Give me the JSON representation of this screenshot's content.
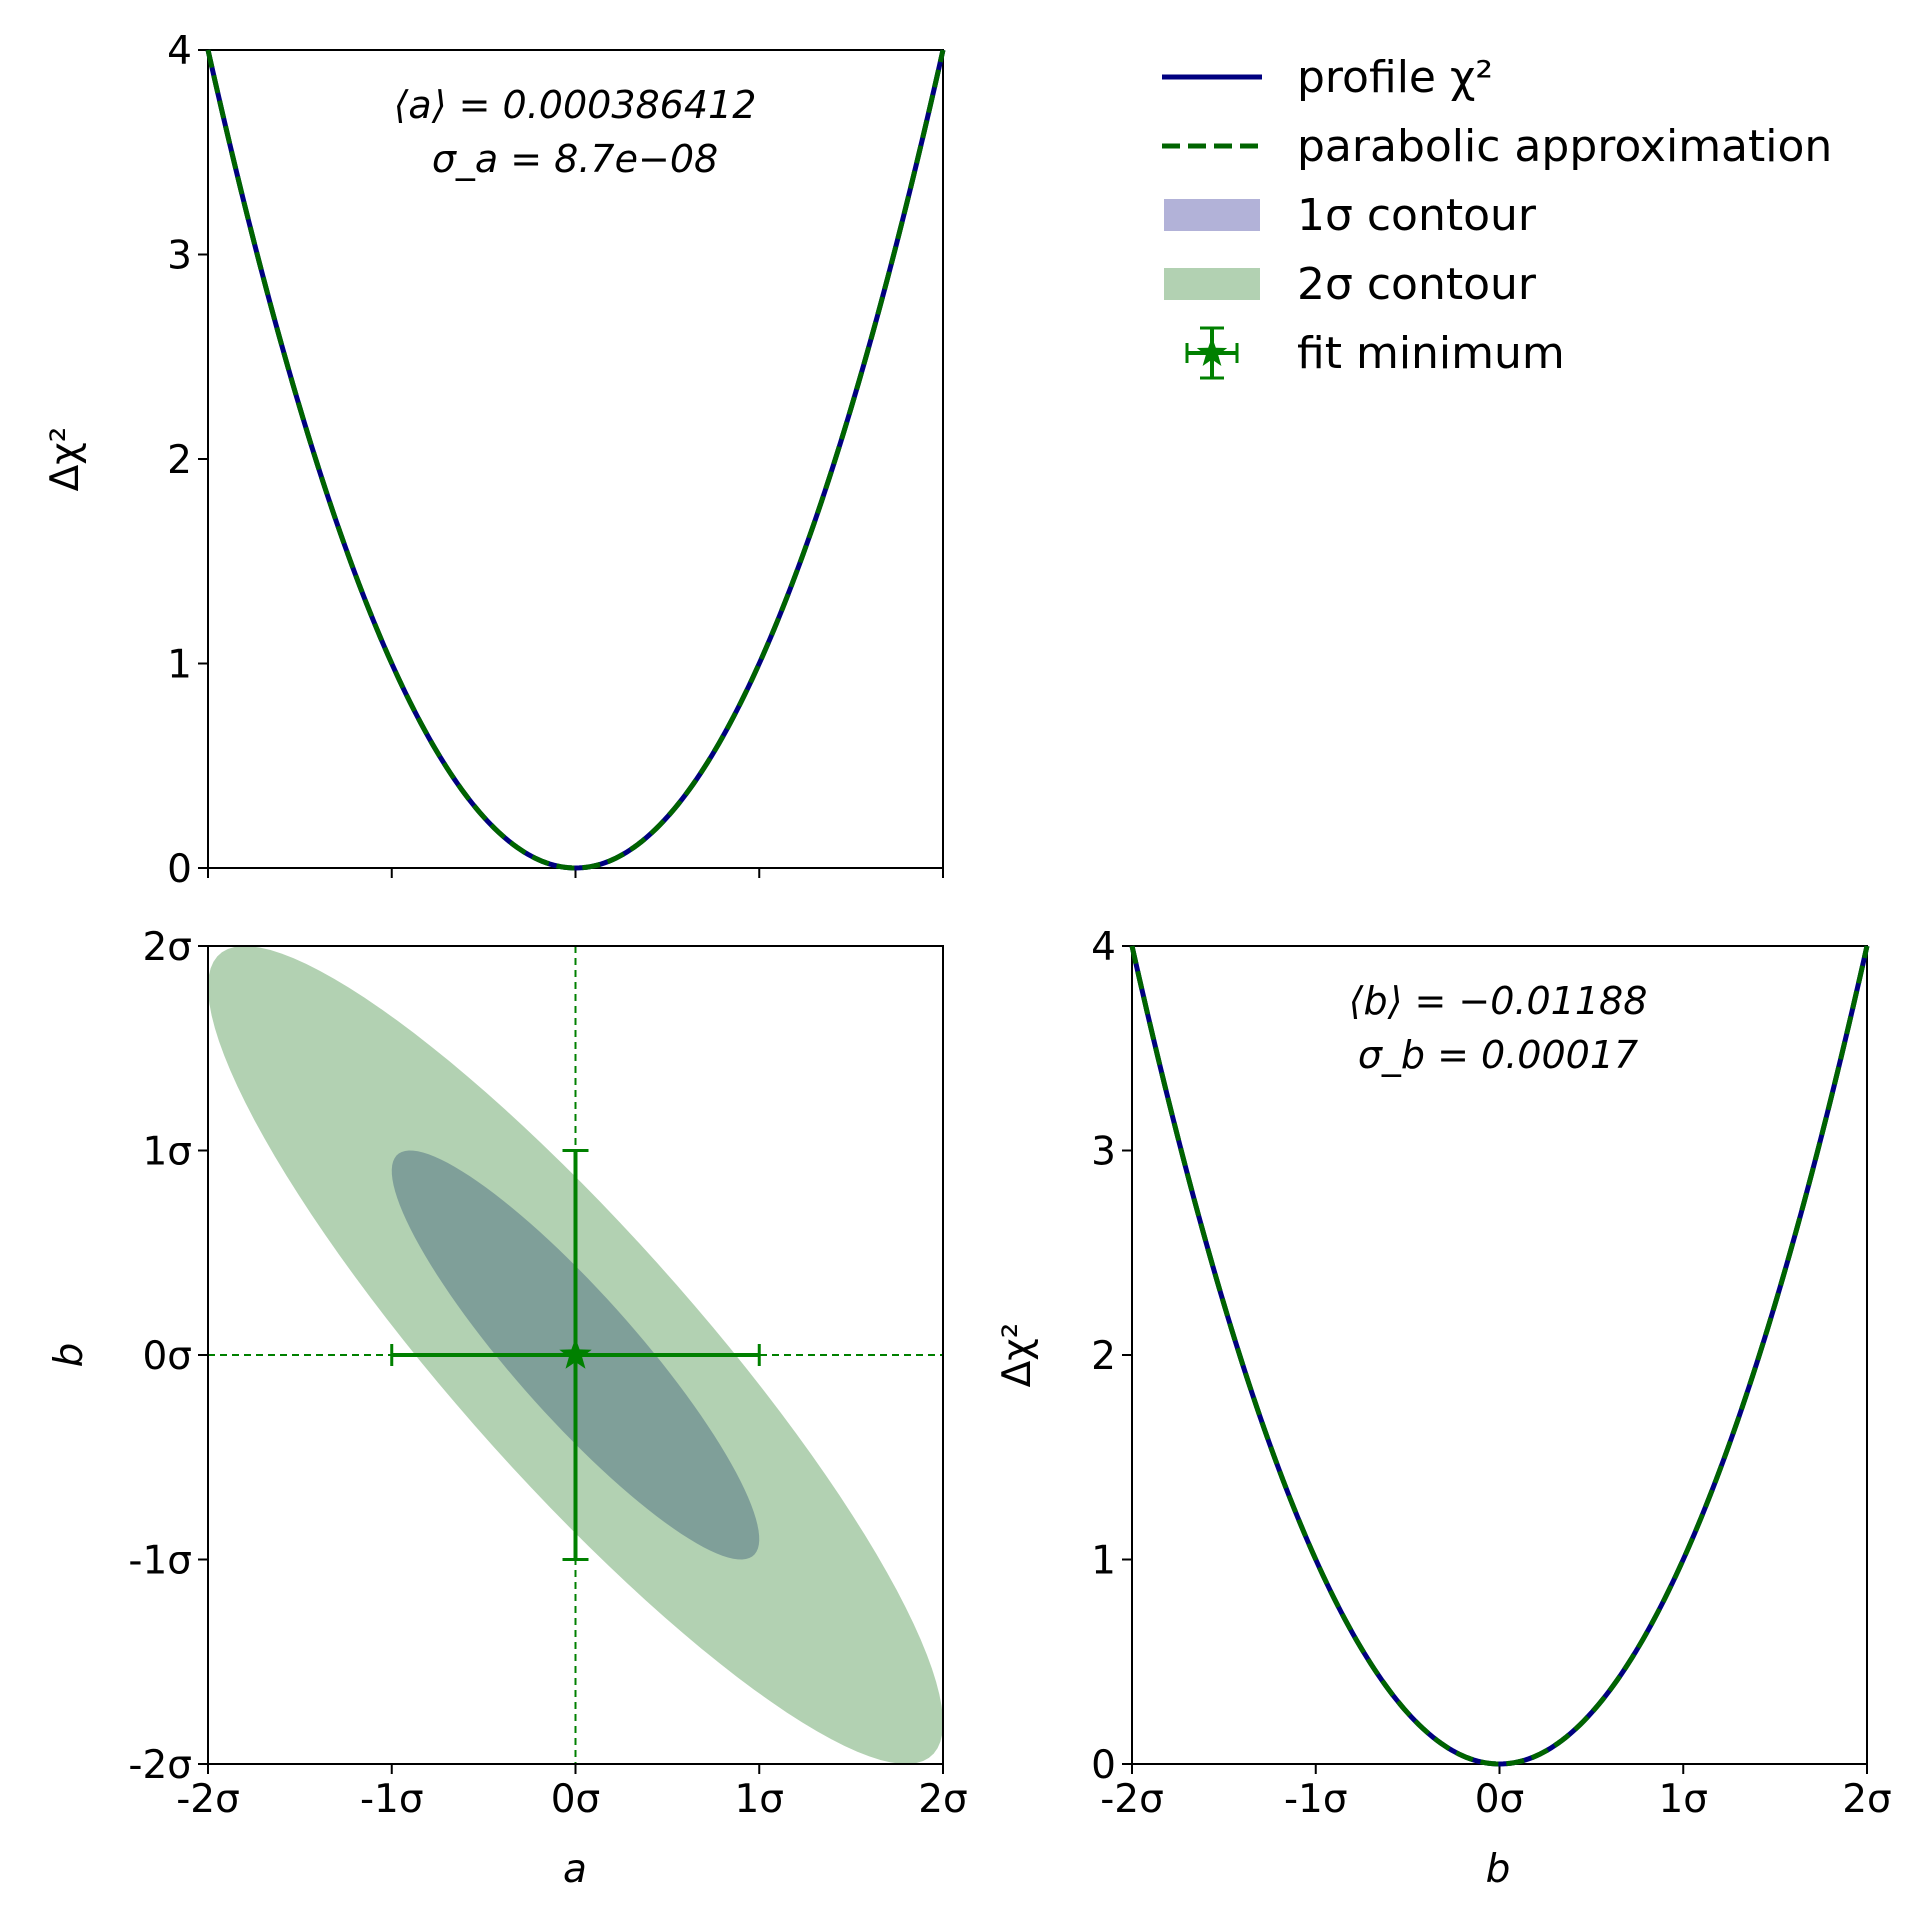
{
  "chart_data": [
    {
      "panel": "top-left",
      "type": "line",
      "xlim": [
        -2,
        2
      ],
      "ylim": [
        0,
        4
      ],
      "yticks": [
        "0",
        "1",
        "2",
        "3",
        "4"
      ],
      "ylabel": "Δχ²",
      "annotation": [
        "⟨a⟩ = 0.000386412",
        "σ_a = 8.7e−08"
      ],
      "series": [
        {
          "name": "profile χ²",
          "style": "solid",
          "color": "#000080",
          "formula": "x^2",
          "x": [
            -2,
            -1,
            0,
            1,
            2
          ],
          "y": [
            4,
            1,
            0,
            1,
            4
          ]
        },
        {
          "name": "parabolic approximation",
          "style": "dashed",
          "color": "#006400",
          "formula": "x^2",
          "x": [
            -2,
            -1,
            0,
            1,
            2
          ],
          "y": [
            4,
            1,
            0,
            1,
            4
          ]
        }
      ]
    },
    {
      "panel": "bottom-left",
      "type": "contour",
      "xlim": [
        -2,
        2
      ],
      "ylim": [
        -2,
        2
      ],
      "xticks": [
        "-2σ",
        "-1σ",
        "0σ",
        "1σ",
        "2σ"
      ],
      "yticks": [
        "-2σ",
        "-1σ",
        "0σ",
        "1σ",
        "2σ"
      ],
      "xlabel": "a",
      "ylabel": "b",
      "contours": [
        {
          "name": "2σ contour",
          "color": "#b2d1b2",
          "correlation": -0.9,
          "level_sigma": 2
        },
        {
          "name": "1σ contour",
          "color": "#7f9f99",
          "correlation": -0.9,
          "level_sigma": 1
        }
      ],
      "fit_minimum": {
        "name": "fit minimum",
        "x": 0,
        "y": 0,
        "xerr": 1,
        "yerr": 1,
        "color": "#008000"
      }
    },
    {
      "panel": "bottom-right",
      "type": "line",
      "xlim": [
        -2,
        2
      ],
      "ylim": [
        0,
        4
      ],
      "xticks": [
        "-2σ",
        "-1σ",
        "0σ",
        "1σ",
        "2σ"
      ],
      "yticks": [
        "0",
        "1",
        "2",
        "3",
        "4"
      ],
      "xlabel": "b",
      "ylabel": "Δχ²",
      "annotation": [
        "⟨b⟩ = −0.01188",
        "σ_b = 0.00017"
      ],
      "series": [
        {
          "name": "profile χ²",
          "style": "solid",
          "color": "#000080",
          "formula": "x^2",
          "x": [
            -2,
            -1,
            0,
            1,
            2
          ],
          "y": [
            4,
            1,
            0,
            1,
            4
          ]
        },
        {
          "name": "parabolic approximation",
          "style": "dashed",
          "color": "#006400",
          "formula": "x^2",
          "x": [
            -2,
            -1,
            0,
            1,
            2
          ],
          "y": [
            4,
            1,
            0,
            1,
            4
          ]
        }
      ]
    }
  ],
  "legend": {
    "placement": "top-right",
    "items": [
      {
        "label": "profile χ²",
        "kind": "line-solid",
        "color": "#000080"
      },
      {
        "label": "parabolic approximation",
        "kind": "line-dashed",
        "color": "#006400"
      },
      {
        "label": "1σ contour",
        "kind": "patch",
        "color": "#b2b2d8"
      },
      {
        "label": "2σ contour",
        "kind": "patch",
        "color": "#b2d1b2"
      },
      {
        "label": "fit minimum",
        "kind": "errorbar-star",
        "color": "#008000"
      }
    ]
  }
}
